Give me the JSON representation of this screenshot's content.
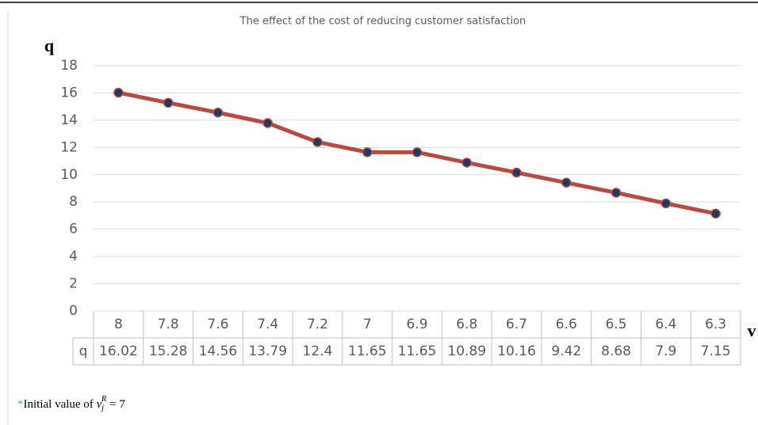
{
  "chart_data": {
    "type": "line",
    "title": "The effect of the cost of reducing customer satisfaction",
    "y_label": "q",
    "x_label": "v",
    "categories": [
      "8",
      "7.8",
      "7.6",
      "7.4",
      "7.2",
      "7",
      "6.9",
      "6.8",
      "6.7",
      "6.6",
      "6.5",
      "6.4",
      "6.3"
    ],
    "series": [
      {
        "name": "q",
        "color": "#b94a3f",
        "marker_color": "#1f3864",
        "values": [
          16.02,
          15.28,
          14.56,
          13.79,
          12.4,
          11.65,
          11.65,
          10.89,
          10.16,
          9.42,
          8.68,
          7.9,
          7.15
        ]
      }
    ],
    "ylim": [
      0,
      18
    ],
    "yticks": [
      0,
      2,
      4,
      6,
      8,
      10,
      12,
      14,
      16,
      18
    ],
    "grid": true
  },
  "footnote": {
    "marker": "*",
    "text": "Initial value of",
    "var": "v",
    "sub": "j",
    "sup": "R",
    "rest": "= 7"
  }
}
